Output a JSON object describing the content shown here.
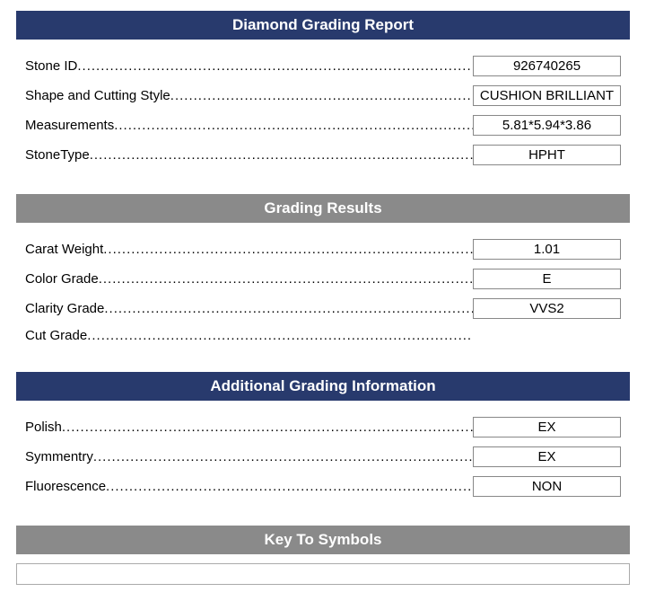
{
  "colors": {
    "header_dark": "#283a6d",
    "header_gray": "#8a8a8a"
  },
  "sections": [
    {
      "key": "main",
      "title": "Diamond Grading Report",
      "header_color": "#283a6d",
      "rows": [
        {
          "label": "Stone ID",
          "value": "926740265",
          "has_value": true
        },
        {
          "label": "Shape and Cutting Style",
          "value": "CUSHION BRILLIANT",
          "has_value": true
        },
        {
          "label": "Measurements",
          "value": "5.81*5.94*3.86",
          "has_value": true
        },
        {
          "label": "StoneType",
          "value": "HPHT",
          "has_value": true
        }
      ]
    },
    {
      "key": "grading",
      "title": "Grading Results",
      "header_color": "#8a8a8a",
      "rows": [
        {
          "label": "Carat Weight",
          "value": "1.01",
          "has_value": true
        },
        {
          "label": "Color Grade",
          "value": "E",
          "has_value": true
        },
        {
          "label": "Clarity Grade",
          "value": "VVS2",
          "has_value": true
        },
        {
          "label": "Cut Grade",
          "value": "",
          "has_value": false
        }
      ]
    },
    {
      "key": "additional",
      "title": "Additional Grading Information",
      "header_color": "#283a6d",
      "rows": [
        {
          "label": "Polish",
          "value": "EX",
          "has_value": true
        },
        {
          "label": "Symmentry",
          "value": "EX",
          "has_value": true
        },
        {
          "label": "Fluorescence",
          "value": "NON",
          "has_value": true
        }
      ]
    },
    {
      "key": "symbols",
      "title": "Key To Symbols",
      "header_color": "#8a8a8a",
      "rows": []
    }
  ]
}
